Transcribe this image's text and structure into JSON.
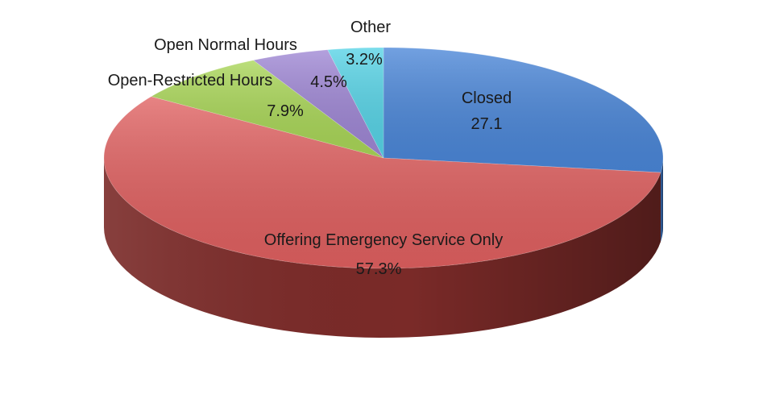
{
  "chart_data": {
    "type": "pie",
    "style": "3d",
    "slices": [
      {
        "name": "Closed",
        "value": 27.1,
        "value_label": "27.1",
        "color": "#4a86d8",
        "side_color": "#2a558f"
      },
      {
        "name": "Offering Emergency Service Only",
        "value": 57.3,
        "value_label": "57.3%",
        "color": "#e06060",
        "side_color": "#7a2a28"
      },
      {
        "name": "Open-Restricted Hours",
        "value": 7.9,
        "value_label": "7.9%",
        "color": "#a9d657",
        "side_color": "#5c7a2c"
      },
      {
        "name": "Open Normal Hours",
        "value": 4.5,
        "value_label": "4.5%",
        "color": "#9e86d4",
        "side_color": "#55477a"
      },
      {
        "name": "Other",
        "value": 3.2,
        "value_label": "3.2%",
        "color": "#56d3e6",
        "side_color": "#2a7f8c"
      }
    ],
    "start_angle_deg": 0,
    "direction": "clockwise"
  }
}
